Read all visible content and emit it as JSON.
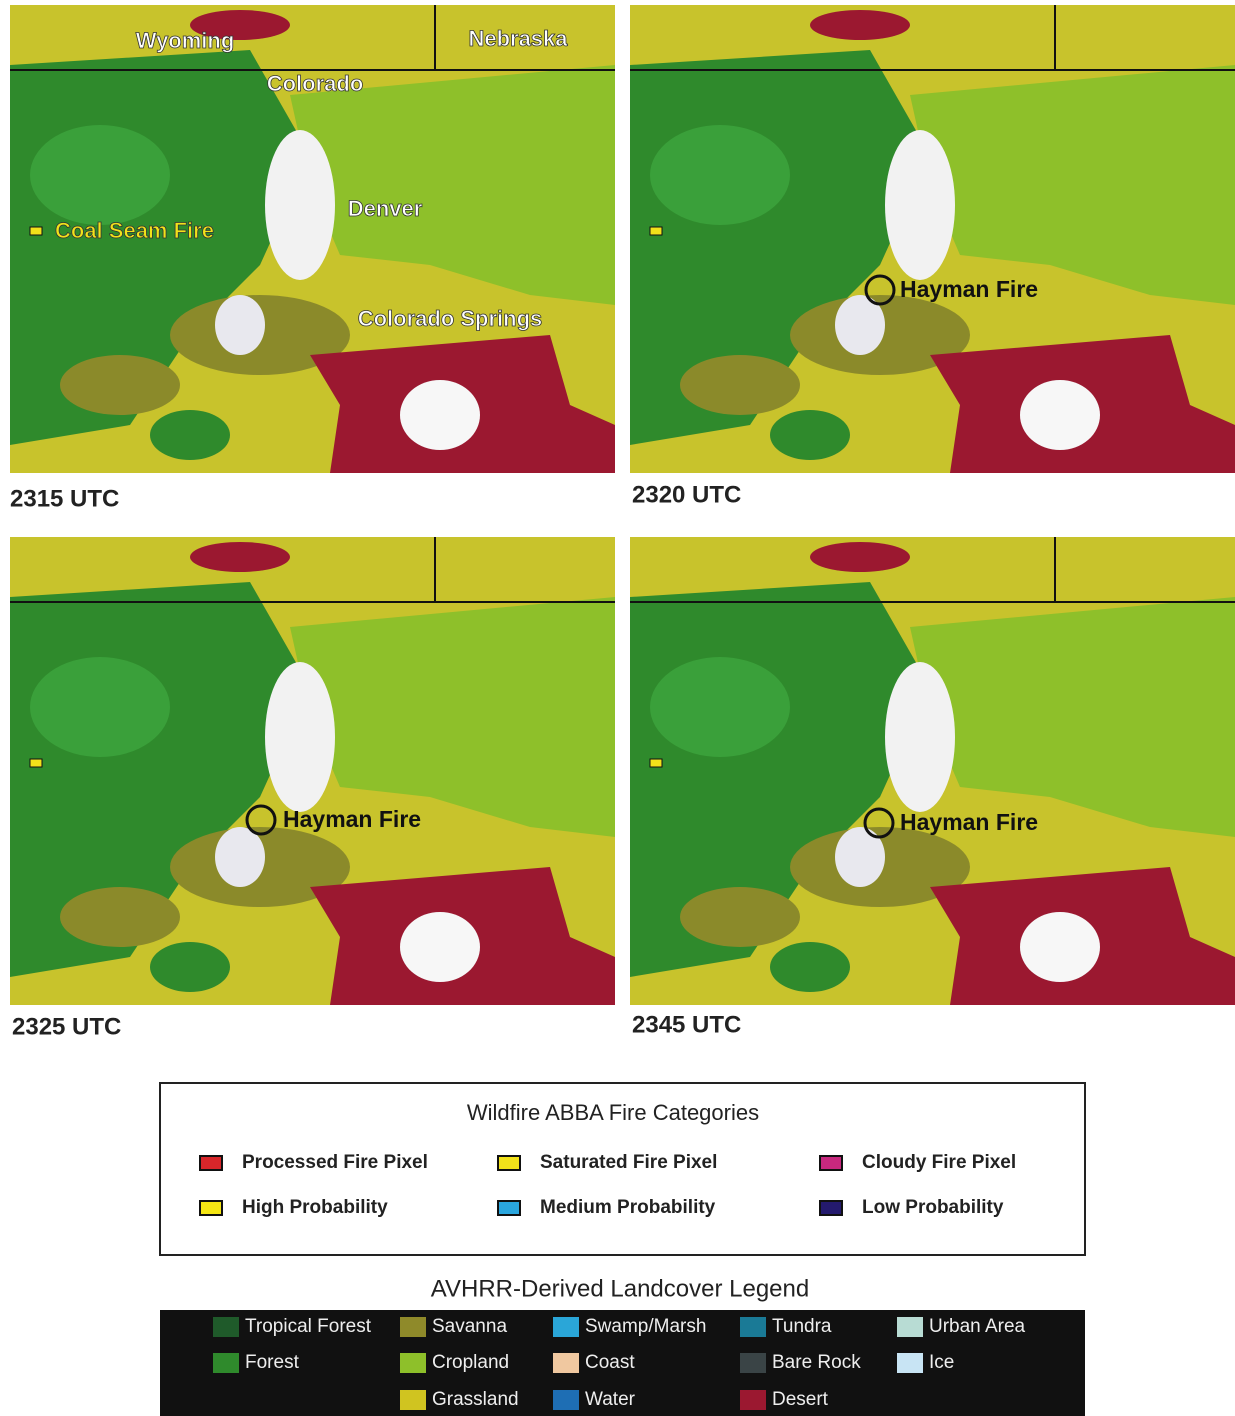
{
  "panels": [
    {
      "labels": [
        "Wyoming",
        "Nebraska",
        "Colorado",
        "Denver",
        "Coal Seam Fire",
        "Colorado Springs"
      ],
      "time": "2315 UTC"
    },
    {
      "labels": [
        "Hayman Fire"
      ],
      "time": "2320 UTC"
    },
    {
      "labels": [
        "Hayman Fire"
      ],
      "time": "2325 UTC"
    },
    {
      "labels": [
        "Hayman Fire"
      ],
      "time": "2345 UTC"
    }
  ],
  "fire_legend": {
    "title": "Wildfire ABBA Fire Categories",
    "rows": [
      [
        {
          "label": "Processed Fire Pixel",
          "color": "#d8262a"
        },
        {
          "label": "Saturated Fire Pixel",
          "color": "#f2e21a"
        },
        {
          "label": "Cloudy Fire Pixel",
          "color": "#c8287e"
        }
      ],
      [
        {
          "label": "High Probability",
          "color": "#f5e614"
        },
        {
          "label": "Medium Probability",
          "color": "#2aa6de"
        },
        {
          "label": "Low Probability",
          "color": "#241a6e"
        }
      ]
    ]
  },
  "landcover_legend": {
    "title": "AVHRR-Derived Landcover Legend",
    "columns": [
      [
        {
          "label": "Tropical Forest",
          "color": "#1f5a2a"
        },
        {
          "label": "Forest",
          "color": "#2f8a2c"
        }
      ],
      [
        {
          "label": "Savanna",
          "color": "#8f8a2a"
        },
        {
          "label": "Cropland",
          "color": "#8ec02a"
        },
        {
          "label": "Grassland",
          "color": "#d0c420"
        }
      ],
      [
        {
          "label": "Swamp/Marsh",
          "color": "#2aa6d8"
        },
        {
          "label": "Coast",
          "color": "#f0c8a0"
        },
        {
          "label": "Water",
          "color": "#1e6eb4"
        }
      ],
      [
        {
          "label": "Tundra",
          "color": "#1a7a96"
        },
        {
          "label": "Bare Rock",
          "color": "#3a4446"
        },
        {
          "label": "Desert",
          "color": "#9b1830"
        }
      ],
      [
        {
          "label": "Urban Area",
          "color": "#b8dcd4"
        },
        {
          "label": "Ice",
          "color": "#c8e4f4"
        }
      ]
    ]
  }
}
